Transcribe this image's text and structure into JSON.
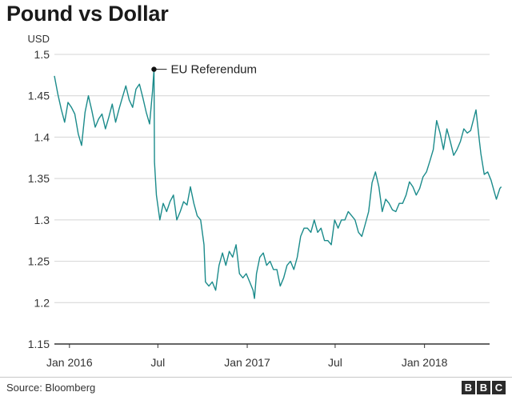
{
  "chart_data": {
    "type": "line",
    "title": "Pound vs Dollar",
    "ylabel": "USD",
    "xlabel": "",
    "ylim": [
      1.15,
      1.5
    ],
    "yticks": [
      1.15,
      1.2,
      1.25,
      1.3,
      1.35,
      1.4,
      1.45,
      1.5
    ],
    "ytick_labels": [
      "1.15",
      "1.2",
      "1.25",
      "1.3",
      "1.35",
      "1.4",
      "1.45",
      "1.5"
    ],
    "xlim": [
      "2015-12-01",
      "2018-05-15"
    ],
    "xticks": [
      {
        "label": "Jan 2016",
        "date": "2016-01-01"
      },
      {
        "label": "Jul",
        "date": "2016-07-01"
      },
      {
        "label": "Jan 2017",
        "date": "2017-01-01"
      },
      {
        "label": "Jul",
        "date": "2017-07-01"
      },
      {
        "label": "Jan 2018",
        "date": "2018-01-01"
      }
    ],
    "grid": true,
    "color": "#1b8b8b",
    "annotation": {
      "label": "EU Referendum",
      "date": "2016-06-23",
      "value": 1.482
    },
    "series": [
      {
        "name": "GBP/USD",
        "points": [
          [
            "2015-12-01",
            1.474
          ],
          [
            "2015-12-08",
            1.452
          ],
          [
            "2015-12-15",
            1.434
          ],
          [
            "2015-12-22",
            1.418
          ],
          [
            "2015-12-29",
            1.442
          ],
          [
            "2016-01-05",
            1.436
          ],
          [
            "2016-01-12",
            1.428
          ],
          [
            "2016-01-19",
            1.404
          ],
          [
            "2016-01-26",
            1.39
          ],
          [
            "2016-02-02",
            1.43
          ],
          [
            "2016-02-09",
            1.45
          ],
          [
            "2016-02-16",
            1.432
          ],
          [
            "2016-02-23",
            1.412
          ],
          [
            "2016-03-01",
            1.422
          ],
          [
            "2016-03-08",
            1.428
          ],
          [
            "2016-03-15",
            1.41
          ],
          [
            "2016-03-22",
            1.424
          ],
          [
            "2016-03-29",
            1.44
          ],
          [
            "2016-04-05",
            1.418
          ],
          [
            "2016-04-12",
            1.434
          ],
          [
            "2016-04-19",
            1.448
          ],
          [
            "2016-04-26",
            1.462
          ],
          [
            "2016-05-03",
            1.445
          ],
          [
            "2016-05-10",
            1.436
          ],
          [
            "2016-05-17",
            1.458
          ],
          [
            "2016-05-24",
            1.464
          ],
          [
            "2016-05-31",
            1.448
          ],
          [
            "2016-06-07",
            1.43
          ],
          [
            "2016-06-14",
            1.416
          ],
          [
            "2016-06-20",
            1.455
          ],
          [
            "2016-06-23",
            1.482
          ],
          [
            "2016-06-24",
            1.37
          ],
          [
            "2016-06-28",
            1.33
          ],
          [
            "2016-07-05",
            1.3
          ],
          [
            "2016-07-12",
            1.32
          ],
          [
            "2016-07-19",
            1.31
          ],
          [
            "2016-07-26",
            1.322
          ],
          [
            "2016-08-02",
            1.33
          ],
          [
            "2016-08-09",
            1.3
          ],
          [
            "2016-08-16",
            1.31
          ],
          [
            "2016-08-23",
            1.322
          ],
          [
            "2016-08-30",
            1.318
          ],
          [
            "2016-09-06",
            1.34
          ],
          [
            "2016-09-13",
            1.32
          ],
          [
            "2016-09-20",
            1.305
          ],
          [
            "2016-09-27",
            1.3
          ],
          [
            "2016-10-04",
            1.27
          ],
          [
            "2016-10-07",
            1.225
          ],
          [
            "2016-10-14",
            1.22
          ],
          [
            "2016-10-21",
            1.225
          ],
          [
            "2016-10-28",
            1.215
          ],
          [
            "2016-11-04",
            1.245
          ],
          [
            "2016-11-11",
            1.26
          ],
          [
            "2016-11-18",
            1.245
          ],
          [
            "2016-11-25",
            1.262
          ],
          [
            "2016-12-02",
            1.255
          ],
          [
            "2016-12-09",
            1.27
          ],
          [
            "2016-12-16",
            1.235
          ],
          [
            "2016-12-23",
            1.23
          ],
          [
            "2016-12-30",
            1.235
          ],
          [
            "2017-01-06",
            1.225
          ],
          [
            "2017-01-13",
            1.215
          ],
          [
            "2017-01-16",
            1.205
          ],
          [
            "2017-01-20",
            1.235
          ],
          [
            "2017-01-27",
            1.255
          ],
          [
            "2017-02-03",
            1.26
          ],
          [
            "2017-02-10",
            1.245
          ],
          [
            "2017-02-17",
            1.25
          ],
          [
            "2017-02-24",
            1.24
          ],
          [
            "2017-03-03",
            1.24
          ],
          [
            "2017-03-10",
            1.22
          ],
          [
            "2017-03-17",
            1.23
          ],
          [
            "2017-03-24",
            1.245
          ],
          [
            "2017-03-31",
            1.25
          ],
          [
            "2017-04-07",
            1.24
          ],
          [
            "2017-04-14",
            1.255
          ],
          [
            "2017-04-21",
            1.28
          ],
          [
            "2017-04-28",
            1.29
          ],
          [
            "2017-05-05",
            1.29
          ],
          [
            "2017-05-12",
            1.285
          ],
          [
            "2017-05-19",
            1.3
          ],
          [
            "2017-05-26",
            1.285
          ],
          [
            "2017-06-02",
            1.29
          ],
          [
            "2017-06-09",
            1.275
          ],
          [
            "2017-06-16",
            1.275
          ],
          [
            "2017-06-23",
            1.27
          ],
          [
            "2017-06-30",
            1.3
          ],
          [
            "2017-07-07",
            1.29
          ],
          [
            "2017-07-14",
            1.3
          ],
          [
            "2017-07-21",
            1.3
          ],
          [
            "2017-07-28",
            1.31
          ],
          [
            "2017-08-04",
            1.305
          ],
          [
            "2017-08-11",
            1.3
          ],
          [
            "2017-08-18",
            1.285
          ],
          [
            "2017-08-25",
            1.28
          ],
          [
            "2017-09-01",
            1.295
          ],
          [
            "2017-09-08",
            1.31
          ],
          [
            "2017-09-15",
            1.345
          ],
          [
            "2017-09-22",
            1.358
          ],
          [
            "2017-09-29",
            1.34
          ],
          [
            "2017-10-06",
            1.31
          ],
          [
            "2017-10-13",
            1.325
          ],
          [
            "2017-10-20",
            1.32
          ],
          [
            "2017-10-27",
            1.312
          ],
          [
            "2017-11-03",
            1.31
          ],
          [
            "2017-11-10",
            1.32
          ],
          [
            "2017-11-17",
            1.32
          ],
          [
            "2017-11-24",
            1.33
          ],
          [
            "2017-12-01",
            1.346
          ],
          [
            "2017-12-08",
            1.34
          ],
          [
            "2017-12-15",
            1.33
          ],
          [
            "2017-12-22",
            1.338
          ],
          [
            "2017-12-29",
            1.352
          ],
          [
            "2018-01-05",
            1.358
          ],
          [
            "2018-01-12",
            1.371
          ],
          [
            "2018-01-19",
            1.385
          ],
          [
            "2018-01-26",
            1.42
          ],
          [
            "2018-02-02",
            1.405
          ],
          [
            "2018-02-09",
            1.385
          ],
          [
            "2018-02-16",
            1.41
          ],
          [
            "2018-02-23",
            1.395
          ],
          [
            "2018-03-02",
            1.378
          ],
          [
            "2018-03-09",
            1.385
          ],
          [
            "2018-03-16",
            1.395
          ],
          [
            "2018-03-23",
            1.41
          ],
          [
            "2018-03-30",
            1.405
          ],
          [
            "2018-04-06",
            1.408
          ],
          [
            "2018-04-13",
            1.424
          ],
          [
            "2018-04-17",
            1.433
          ],
          [
            "2018-04-24",
            1.395
          ],
          [
            "2018-04-27",
            1.38
          ],
          [
            "2018-05-04",
            1.355
          ],
          [
            "2018-05-11",
            1.358
          ],
          [
            "2018-05-18",
            1.348
          ],
          [
            "2018-05-25",
            1.333
          ],
          [
            "2018-05-29",
            1.325
          ],
          [
            "2018-06-05",
            1.338
          ],
          [
            "2018-06-08",
            1.34
          ]
        ]
      }
    ]
  },
  "footer": {
    "source": "Source: Bloomberg",
    "logo_letters": [
      "B",
      "B",
      "C"
    ]
  }
}
